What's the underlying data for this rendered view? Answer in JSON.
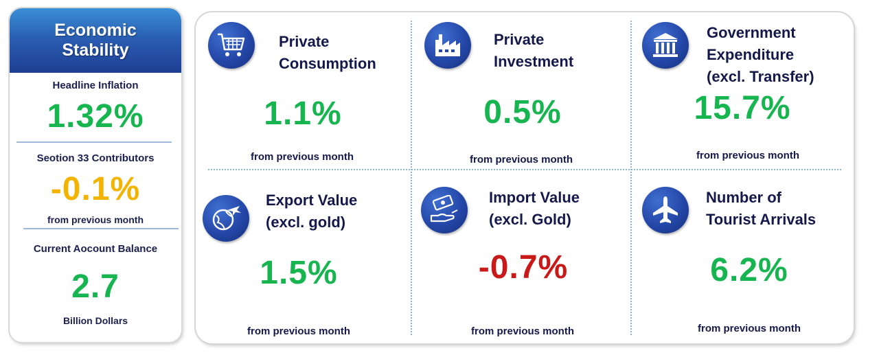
{
  "economic_stability": {
    "header": "Economic\nStability",
    "headline_inflation": {
      "label": "Headline Inflation",
      "value": "1.32%"
    },
    "section33": {
      "label": "Seotion 33 Contributors",
      "value": "-0.1%",
      "note": "from previous month"
    },
    "current_account": {
      "label": "Current Aocount Balance",
      "value": "2.7",
      "note": "Billion Dollars"
    }
  },
  "cards": [
    {
      "title": "Private\nConsumption",
      "value": "1.1%",
      "note": "from previous month",
      "icon": "shopping-cart-icon",
      "color": "#17b54f"
    },
    {
      "title": "Private\nInvestment",
      "value": "0.5%",
      "note": "from previous month",
      "icon": "factory-icon",
      "color": "#17b54f"
    },
    {
      "title": "Government\nExpenditure\n(excl. Transfer)",
      "value": "15.7%",
      "note": "from previous month",
      "icon": "government-building-icon",
      "color": "#17b54f"
    },
    {
      "title": "Export Value\n(excl. gold)",
      "value": "1.5%",
      "note": "from previous month",
      "icon": "globe-plane-icon",
      "color": "#17b54f"
    },
    {
      "title": "Import Value\n(excl. Gold)",
      "value": "-0.7%",
      "note": "from previous month",
      "icon": "money-hand-icon",
      "color": "#c91a1a"
    },
    {
      "title": "Number of\nTourist Arrivals",
      "value": "6.2%",
      "note": "from previous month",
      "icon": "airplane-icon",
      "color": "#17b54f"
    }
  ]
}
